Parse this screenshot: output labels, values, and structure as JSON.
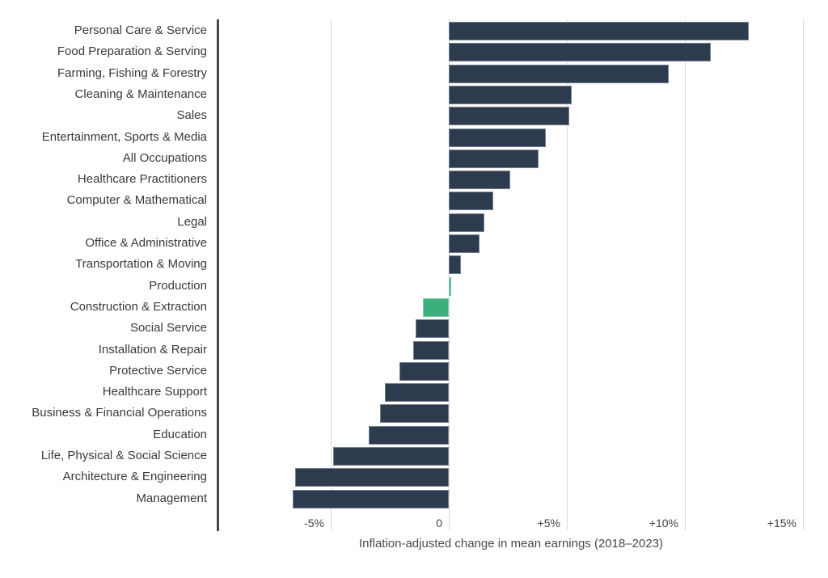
{
  "chart_data": {
    "type": "bar",
    "orientation": "horizontal",
    "title": "",
    "xlabel": "Inflation-adjusted change in mean earnings (2018–2023)",
    "ylabel": "",
    "xlim": [
      -10,
      15
    ],
    "x_ticks": [
      {
        "value": -5,
        "label": "-5%"
      },
      {
        "value": 0,
        "label": "0"
      },
      {
        "value": 5,
        "label": "+5%"
      },
      {
        "value": 10,
        "label": "+10%"
      },
      {
        "value": 15,
        "label": "+15%"
      }
    ],
    "grid": true,
    "legend": null,
    "colors": {
      "default": "#2d3b4e",
      "highlight": "#3daf7c"
    },
    "categories": [
      "Personal Care & Service",
      "Food Preparation & Serving",
      "Farming, Fishing & Forestry",
      "Cleaning & Maintenance",
      "Sales",
      "Entertainment, Sports & Media",
      "All Occupations",
      "Healthcare Practitioners",
      "Computer & Mathematical",
      "Legal",
      "Office & Administrative",
      "Transportation & Moving",
      "Production",
      "Construction & Extraction",
      "Social Service",
      "Installation & Repair",
      "Protective Service",
      "Healthcare Support",
      "Business & Financial Operations",
      "Education",
      "Life, Physical & Social Science",
      "Architecture & Engineering",
      "Management"
    ],
    "values": [
      12.7,
      11.1,
      9.3,
      5.2,
      5.1,
      4.1,
      3.8,
      2.6,
      1.9,
      1.5,
      1.3,
      0.5,
      0.1,
      -1.1,
      -1.4,
      -1.5,
      -2.1,
      -2.7,
      -2.9,
      -3.4,
      -4.9,
      -6.5,
      -6.6
    ],
    "highlighted": [
      "Production",
      "Construction & Extraction"
    ]
  }
}
